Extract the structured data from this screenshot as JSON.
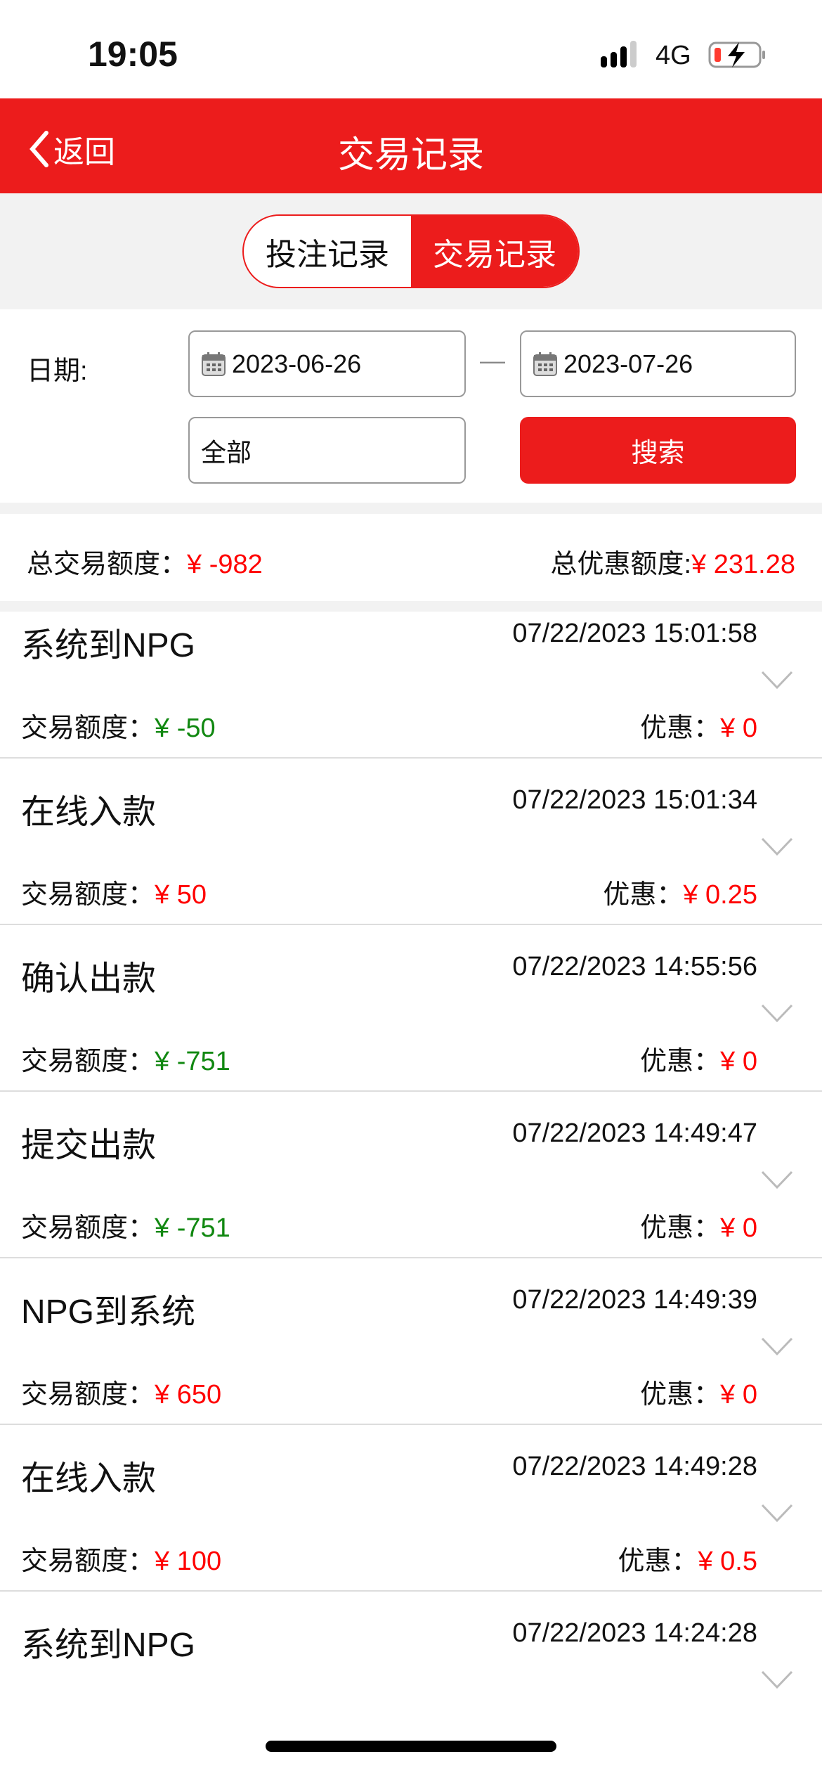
{
  "status_bar": {
    "time": "19:05",
    "network": "4G",
    "battery_color": "#ff3b30"
  },
  "header": {
    "back_label": "返回",
    "title": "交易记录",
    "accent": "#ec1c1c"
  },
  "tabs": [
    {
      "label": "投注记录",
      "active": false
    },
    {
      "label": "交易记录",
      "active": true
    }
  ],
  "filter": {
    "date_label": "日期:",
    "start_date": "2023-06-26",
    "separator": "—",
    "end_date": "2023-07-26",
    "type_value": "全部",
    "search_label": "搜索"
  },
  "summary": {
    "total_label": "总交易额度：",
    "total_value": "¥ -982",
    "discount_label": "总优惠额度:",
    "discount_value": "¥ 231.28"
  },
  "records": [
    {
      "name": "系统到NPG",
      "time": "07/22/2023 15:01:58",
      "amount_label": "交易额度：",
      "amount": "¥ -50",
      "amount_color": "green",
      "discount_label": "优惠：",
      "discount": "¥ 0"
    },
    {
      "name": "在线入款",
      "time": "07/22/2023 15:01:34",
      "amount_label": "交易额度：",
      "amount": "¥ 50",
      "amount_color": "red",
      "discount_label": "优惠：",
      "discount": "¥ 0.25"
    },
    {
      "name": "确认出款",
      "time": "07/22/2023 14:55:56",
      "amount_label": "交易额度：",
      "amount": "¥ -751",
      "amount_color": "green",
      "discount_label": "优惠：",
      "discount": "¥ 0"
    },
    {
      "name": "提交出款",
      "time": "07/22/2023 14:49:47",
      "amount_label": "交易额度：",
      "amount": "¥ -751",
      "amount_color": "green",
      "discount_label": "优惠：",
      "discount": "¥ 0"
    },
    {
      "name": "NPG到系统",
      "time": "07/22/2023 14:49:39",
      "amount_label": "交易额度：",
      "amount": "¥ 650",
      "amount_color": "red",
      "discount_label": "优惠：",
      "discount": "¥ 0"
    },
    {
      "name": "在线入款",
      "time": "07/22/2023 14:49:28",
      "amount_label": "交易额度：",
      "amount": "¥ 100",
      "amount_color": "red",
      "discount_label": "优惠：",
      "discount": "¥ 0.5"
    },
    {
      "name": "系统到NPG",
      "time": "07/22/2023 14:24:28",
      "amount_label": "",
      "amount": "",
      "amount_color": "red",
      "discount_label": "",
      "discount": ""
    }
  ]
}
